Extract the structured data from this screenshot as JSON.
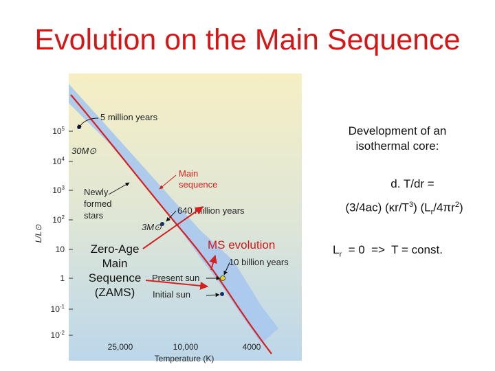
{
  "title": "Evolution on the Main Sequence",
  "diagram": {
    "y_axis_label": "L/L⊙",
    "x_axis_label": "Temperature (K)",
    "y_ticks": [
      {
        "base": "10",
        "exp": "5"
      },
      {
        "base": "10",
        "exp": "4"
      },
      {
        "base": "10",
        "exp": "3"
      },
      {
        "base": "10",
        "exp": "2"
      },
      {
        "base": "10",
        "exp": ""
      },
      {
        "base": "1",
        "exp": ""
      },
      {
        "base": "10",
        "exp": "-1"
      },
      {
        "base": "10",
        "exp": "-2"
      }
    ],
    "x_ticks": [
      "25,000",
      "10,000",
      "4000"
    ],
    "labels": {
      "five_million": "5 million years",
      "mass_30": "30M⊙",
      "main_sequence_line1": "Main",
      "main_sequence_line2": "sequence",
      "newly_line1": "Newly",
      "newly_line2": "formed",
      "newly_line3": "stars",
      "six_forty": "640 million years",
      "mass_3": "3M⊙",
      "ten_billion": "10 billion years",
      "present_sun": "Present sun",
      "initial_sun": "Initial sun"
    },
    "colors": {
      "main_sequence_line": "#d62020",
      "evolution_band": "#a9c8ee",
      "background_top": "#f6efc4",
      "background_bottom": "#bcd7ea"
    }
  },
  "annotations": {
    "zams": [
      "Zero-Age",
      "Main",
      "Sequence",
      "(ZAMS)"
    ],
    "ms_evolution": "MS evolution"
  },
  "side_text": {
    "development_line1": "Development of an",
    "development_line2": "isothermal core:",
    "gradient_line": "d. T/dr =",
    "equation": {
      "p1": "(3/4ac) (",
      "kappa": "κ",
      "p2": "r/T",
      "exp3": "3",
      "p3": ") (L",
      "sub_r": "r",
      "p4": "/4",
      "pi": "π",
      "p5": "r",
      "exp2": "2",
      "p6": ")"
    },
    "isothermal": {
      "L": "L",
      "sub_r": "r",
      "rest": "  = 0  =>  T = const."
    }
  }
}
